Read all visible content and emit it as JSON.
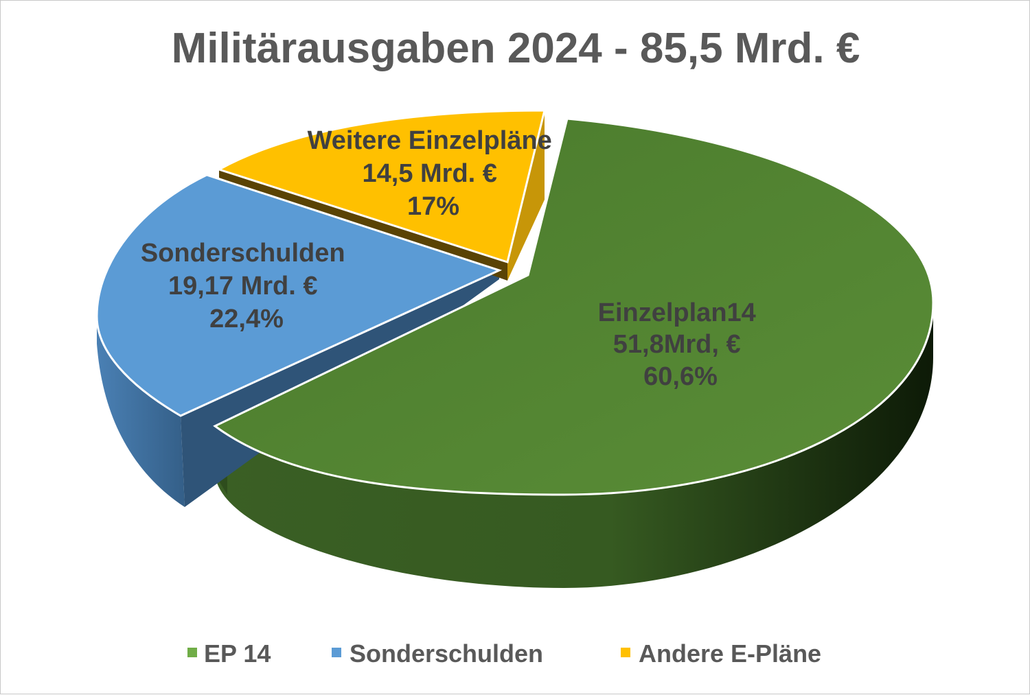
{
  "chart_data": {
    "type": "pie",
    "title": "Militärausgaben 2024 - 85,5 Mrd. €",
    "legend_position": "bottom",
    "series": [
      {
        "name": "EP 14",
        "value": 51.8,
        "percent": 60.6,
        "color": "#548235",
        "label_lines": [
          "Einzelplan14",
          "51,8Mrd, €",
          "60,6%"
        ]
      },
      {
        "name": "Sonderschulden",
        "value": 19.17,
        "percent": 22.4,
        "color": "#5b9bd5",
        "label_lines": [
          "Sonderschulden",
          "19,17 Mrd. €",
          "22,4%"
        ]
      },
      {
        "name": "Andere E-Pläne",
        "value": 14.5,
        "percent": 17,
        "color": "#ffc000",
        "label_lines": [
          "Weitere Einzelpläne",
          "14,5 Mrd. €",
          "17%"
        ]
      }
    ],
    "title_color": "#595959",
    "label_color": "#404040",
    "legend_color": "#595959"
  }
}
